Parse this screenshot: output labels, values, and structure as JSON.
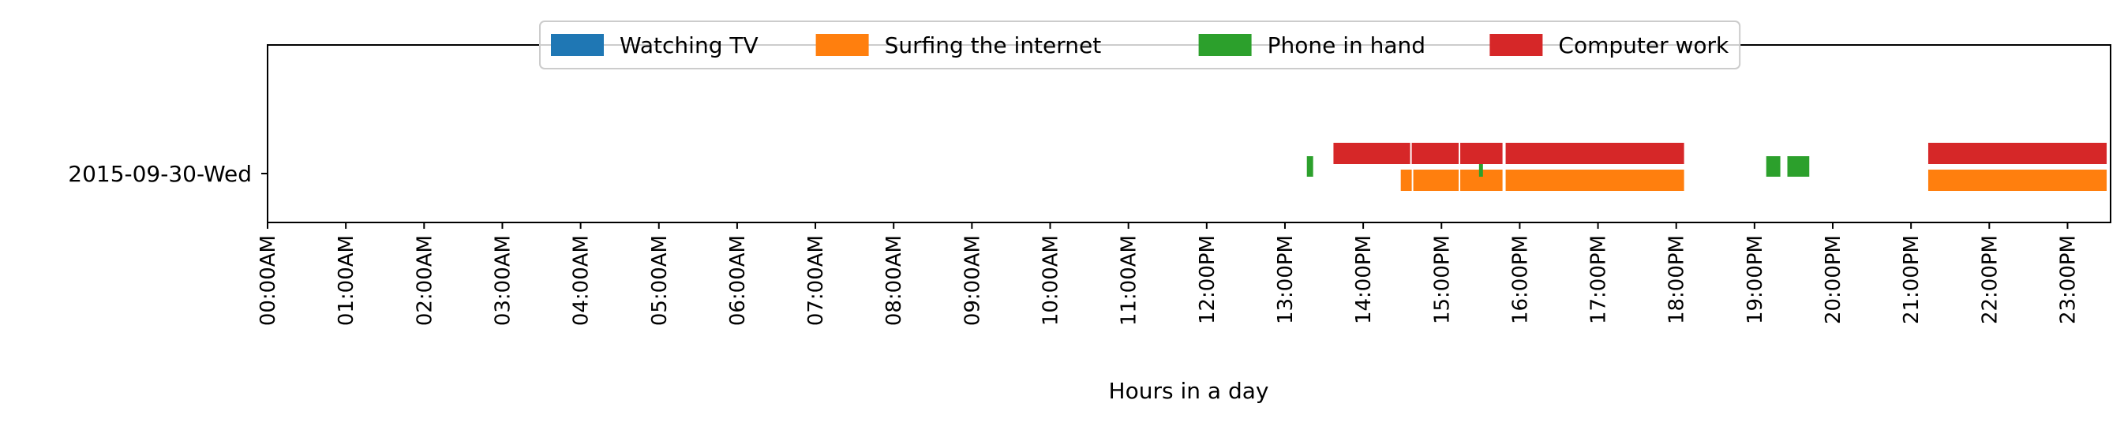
{
  "chart_data": {
    "type": "timeline",
    "xlabel": "Hours in a day",
    "ylabel": "",
    "xlim": [
      0,
      24
    ],
    "x_ticks": [
      {
        "value": 0,
        "label": "00:00AM"
      },
      {
        "value": 1,
        "label": "01:00AM"
      },
      {
        "value": 2,
        "label": "02:00AM"
      },
      {
        "value": 3,
        "label": "03:00AM"
      },
      {
        "value": 4,
        "label": "04:00AM"
      },
      {
        "value": 5,
        "label": "05:00AM"
      },
      {
        "value": 6,
        "label": "06:00AM"
      },
      {
        "value": 7,
        "label": "07:00AM"
      },
      {
        "value": 8,
        "label": "08:00AM"
      },
      {
        "value": 9,
        "label": "09:00AM"
      },
      {
        "value": 10,
        "label": "10:00AM"
      },
      {
        "value": 11,
        "label": "11:00AM"
      },
      {
        "value": 12,
        "label": "12:00PM"
      },
      {
        "value": 13,
        "label": "13:00PM"
      },
      {
        "value": 14,
        "label": "14:00PM"
      },
      {
        "value": 15,
        "label": "15:00PM"
      },
      {
        "value": 16,
        "label": "16:00PM"
      },
      {
        "value": 17,
        "label": "17:00PM"
      },
      {
        "value": 18,
        "label": "18:00PM"
      },
      {
        "value": 19,
        "label": "19:00PM"
      },
      {
        "value": 20,
        "label": "20:00PM"
      },
      {
        "value": 21,
        "label": "21:00PM"
      },
      {
        "value": 22,
        "label": "22:00PM"
      },
      {
        "value": 23,
        "label": "23:00PM"
      }
    ],
    "categories": [
      "2015-09-30-Wed"
    ],
    "legend_position": "top-center",
    "grid": false,
    "series": [
      {
        "name": "Watching TV",
        "color": "#1f77b4",
        "intervals": []
      },
      {
        "name": "Surfing the internet",
        "color": "#ff7f0e",
        "intervals": [
          [
            14.48,
            14.62
          ],
          [
            14.64,
            15.22
          ],
          [
            15.24,
            15.78
          ],
          [
            15.82,
            18.1
          ],
          [
            21.22,
            23.5
          ]
        ]
      },
      {
        "name": "Phone in hand",
        "color": "#2ca02c",
        "intervals": [
          [
            13.28,
            13.36
          ],
          [
            15.48,
            15.53
          ],
          [
            19.15,
            19.33
          ],
          [
            19.42,
            19.7
          ]
        ]
      },
      {
        "name": "Computer work",
        "color": "#d62728",
        "intervals": [
          [
            13.62,
            14.6
          ],
          [
            14.62,
            15.22
          ],
          [
            15.24,
            15.78
          ],
          [
            15.82,
            18.1
          ],
          [
            21.22,
            23.5
          ]
        ]
      }
    ]
  }
}
